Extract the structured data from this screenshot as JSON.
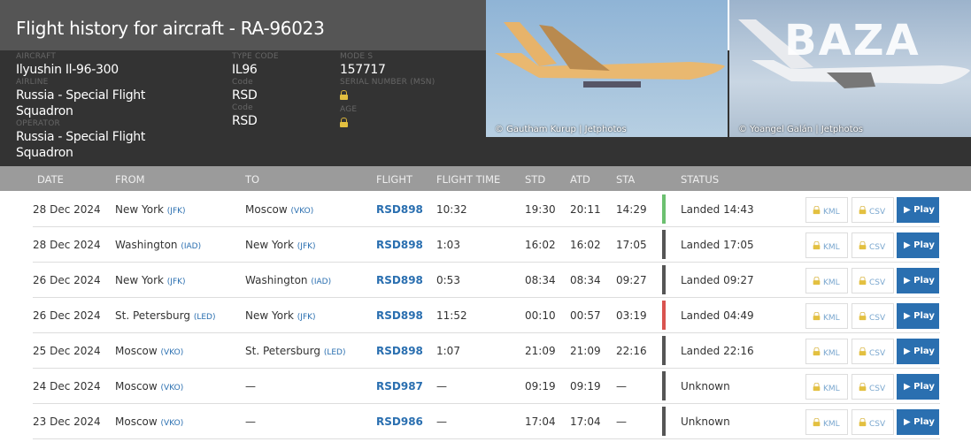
{
  "title": "Flight history for aircraft - RA-96023",
  "info": {
    "aircraft_label": "AIRCRAFT",
    "aircraft": "Ilyushin Il-96-300",
    "airline_label": "AIRLINE",
    "airline": "Russia - Special Flight Squadron",
    "operator_label": "OPERATOR",
    "operator": "Russia - Special Flight Squadron",
    "type_code_label": "TYPE CODE",
    "type_code": "IL96",
    "code_label_1": "Code",
    "code_1": "RSD",
    "code_label_2": "Code",
    "code_2": "RSD",
    "mode_s_label": "MODE S",
    "mode_s": "157717",
    "serial_label": "SERIAL NUMBER (MSN)",
    "age_label": "AGE"
  },
  "photos": [
    {
      "credit": "© Gautham Kurup | Jetphotos"
    },
    {
      "credit": "© Yoangel Galán | Jetphotos",
      "watermark": "BAZA"
    }
  ],
  "columns": [
    "DATE",
    "FROM",
    "TO",
    "FLIGHT",
    "FLIGHT TIME",
    "STD",
    "ATD",
    "STA",
    "STATUS"
  ],
  "buttons": {
    "kml": "KML",
    "csv": "CSV",
    "play": "Play"
  },
  "status_colors": {
    "green": "#6cc070",
    "gray": "#555555",
    "red": "#d9534f"
  },
  "rows": [
    {
      "date": "28 Dec 2024",
      "from": "New York",
      "from_code": "(JFK)",
      "to": "Moscow",
      "to_code": "(VKO)",
      "flight": "RSD898",
      "time": "10:32",
      "std": "19:30",
      "atd": "20:11",
      "sta": "14:29",
      "status": "Landed 14:43",
      "color": "green"
    },
    {
      "date": "28 Dec 2024",
      "from": "Washington",
      "from_code": "(IAD)",
      "to": "New York",
      "to_code": "(JFK)",
      "flight": "RSD898",
      "time": "1:03",
      "std": "16:02",
      "atd": "16:02",
      "sta": "17:05",
      "status": "Landed 17:05",
      "color": "gray"
    },
    {
      "date": "26 Dec 2024",
      "from": "New York",
      "from_code": "(JFK)",
      "to": "Washington",
      "to_code": "(IAD)",
      "flight": "RSD898",
      "time": "0:53",
      "std": "08:34",
      "atd": "08:34",
      "sta": "09:27",
      "status": "Landed 09:27",
      "color": "gray"
    },
    {
      "date": "26 Dec 2024",
      "from": "St. Petersburg",
      "from_code": "(LED)",
      "to": "New York",
      "to_code": "(JFK)",
      "flight": "RSD898",
      "time": "11:52",
      "std": "00:10",
      "atd": "00:57",
      "sta": "03:19",
      "status": "Landed 04:49",
      "color": "red"
    },
    {
      "date": "25 Dec 2024",
      "from": "Moscow",
      "from_code": "(VKO)",
      "to": "St. Petersburg",
      "to_code": "(LED)",
      "flight": "RSD898",
      "time": "1:07",
      "std": "21:09",
      "atd": "21:09",
      "sta": "22:16",
      "status": "Landed 22:16",
      "color": "gray"
    },
    {
      "date": "24 Dec 2024",
      "from": "Moscow",
      "from_code": "(VKO)",
      "to": "—",
      "to_code": "",
      "flight": "RSD987",
      "time": "—",
      "std": "09:19",
      "atd": "09:19",
      "sta": "—",
      "status": "Unknown",
      "color": "gray"
    },
    {
      "date": "23 Dec 2024",
      "from": "Moscow",
      "from_code": "(VKO)",
      "to": "—",
      "to_code": "",
      "flight": "RSD986",
      "time": "—",
      "std": "17:04",
      "atd": "17:04",
      "sta": "—",
      "status": "Unknown",
      "color": "gray"
    }
  ]
}
